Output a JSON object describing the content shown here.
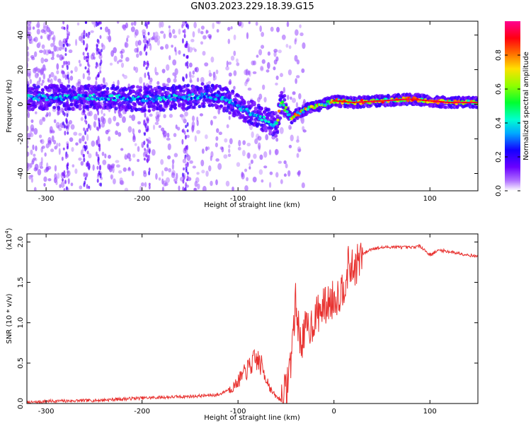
{
  "title": "GN03.2023.229.18.39.G15",
  "chart_data": [
    {
      "type": "heatmap",
      "xlabel": "Height of straight line (km)",
      "ylabel": "Frequency (Hz)",
      "xlim": [
        -320,
        150
      ],
      "ylim": [
        -50,
        48
      ],
      "xticks": [
        -300,
        -200,
        -100,
        0,
        100
      ],
      "yticks": [
        -40,
        -20,
        0,
        20,
        40
      ],
      "grid": false,
      "colorbar": {
        "label": "Normalized spectral amplitude",
        "range": [
          0.0,
          1.0
        ],
        "ticks": [
          0.0,
          0.2,
          0.4,
          0.6,
          0.8
        ],
        "colormap": "hsv-like (purple-blue-cyan-green-yellow-red-magenta)"
      },
      "ridge": {
        "x": [
          -320,
          -280,
          -240,
          -200,
          -160,
          -130,
          -110,
          -90,
          -75,
          -60,
          -55,
          -50,
          -45,
          -30,
          -10,
          0,
          20,
          50,
          80,
          100,
          120,
          150
        ],
        "y": [
          4,
          4,
          4,
          3,
          4,
          5,
          2,
          -4,
          -8,
          -12,
          1,
          -3,
          -8,
          -3,
          0,
          2,
          1,
          2,
          3,
          2,
          1,
          1
        ]
      }
    },
    {
      "type": "line",
      "xlabel": "Height of straight line (km)",
      "ylabel": "SNR (10 * v/v)",
      "y_scale_label": "(x10",
      "y_scale_exp": "4",
      "y_scale_close": ")",
      "xlim": [
        -320,
        150
      ],
      "ylim": [
        0,
        2.1
      ],
      "xticks": [
        -300,
        -200,
        -100,
        0,
        100
      ],
      "yticks": [
        "0.0",
        "0.5",
        "1.0",
        "1.5",
        "2.0"
      ],
      "color": "#e8302e",
      "series": [
        {
          "x": [
            -320,
            -300,
            -250,
            -200,
            -150,
            -120,
            -105,
            -95,
            -85,
            -80,
            -75,
            -70,
            -65,
            -60,
            -55,
            -50,
            -45,
            -40,
            -35,
            -30,
            -25,
            -20,
            -15,
            -10,
            -5,
            0,
            5,
            10,
            15,
            20,
            30,
            40,
            60,
            80,
            90,
            100,
            110,
            120,
            150
          ],
          "y": [
            0.0,
            0.02,
            0.03,
            0.06,
            0.08,
            0.1,
            0.2,
            0.35,
            0.5,
            0.55,
            0.45,
            0.3,
            0.15,
            0.08,
            0.05,
            0.15,
            0.55,
            1.25,
            0.75,
            0.9,
            0.95,
            1.05,
            1.15,
            1.2,
            1.25,
            1.3,
            1.35,
            1.45,
            1.7,
            1.65,
            1.85,
            1.92,
            1.94,
            1.93,
            1.95,
            1.84,
            1.9,
            1.88,
            1.82
          ]
        }
      ]
    }
  ]
}
